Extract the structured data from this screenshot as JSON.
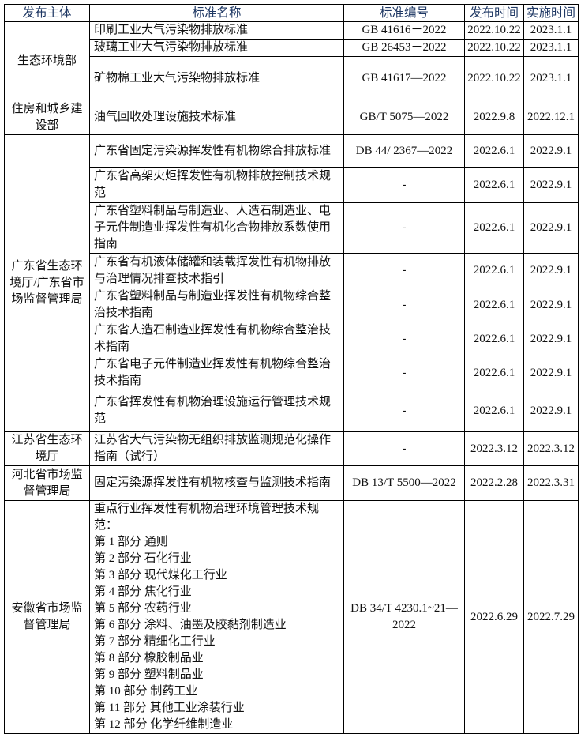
{
  "headers": [
    "发布主体",
    "标准名称",
    "标准编号",
    "发布时间",
    "实施时间"
  ],
  "groups": [
    {
      "agency": "生态环境部",
      "rows": [
        {
          "name": "印刷工业大气污染物排放标准",
          "code": "GB 41616－2022",
          "publish": "2022.10.22",
          "implement": "2023.1.1"
        },
        {
          "name": "玻璃工业大气污染物排放标准",
          "code": "GB 26453－2022",
          "publish": "2022.10.22",
          "implement": "2023.1.1"
        },
        {
          "name": "矿物棉工业大气污染物排放标准",
          "code": "GB 41617—2022",
          "publish": "2022.10.22",
          "implement": "2023.1.1"
        }
      ]
    },
    {
      "agency": "住房和城乡建设部",
      "rows": [
        {
          "name": "油气回收处理设施技术标准",
          "code": "GB/T 5075—2022",
          "publish": "2022.9.8",
          "implement": "2022.12.1"
        }
      ]
    },
    {
      "agency": "广东省生态环境厅/广东省市场监督管理局",
      "rows": [
        {
          "name": "广东省固定污染源挥发性有机物综合排放标准",
          "code": "DB 44/ 2367—2022",
          "publish": "2022.6.1",
          "implement": "2022.9.1"
        },
        {
          "name": "广东省高架火炬挥发性有机物排放控制技术规范",
          "code": "-",
          "publish": "2022.6.1",
          "implement": "2022.9.1"
        },
        {
          "name": "广东省塑料制品与制造业、人造石制造业、电子元件制造业挥发性有机化合物排放系数使用指南",
          "code": "-",
          "publish": "2022.6.1",
          "implement": "2022.9.1"
        },
        {
          "name": "广东省有机液体储罐和装载挥发性有机物排放与治理情况排查技术指引",
          "code": "-",
          "publish": "2022.6.1",
          "implement": "2022.9.1"
        },
        {
          "name": "广东省塑料制品与制造业挥发性有机物综合整治技术指南",
          "code": "-",
          "publish": "2022.6.1",
          "implement": "2022.9.1"
        },
        {
          "name": "广东省人造石制造业挥发性有机物综合整治技术指南",
          "code": "-",
          "publish": "2022.6.1",
          "implement": "2022.9.1"
        },
        {
          "name": "广东省电子元件制造业挥发性有机物综合整治技术指南",
          "code": "-",
          "publish": "2022.6.1",
          "implement": "2022.9.1"
        },
        {
          "name": "广东省挥发性有机物治理设施运行管理技术规范",
          "code": "-",
          "publish": "2022.6.1",
          "implement": "2022.9.1"
        }
      ]
    },
    {
      "agency": "江苏省生态环境厅",
      "rows": [
        {
          "name": "江苏省大气污染物无组织排放监测规范化操作指南（试行）",
          "code": "-",
          "publish": "2022.3.12",
          "implement": "2022.3.12"
        }
      ]
    },
    {
      "agency": "河北省市场监督管理局",
      "rows": [
        {
          "name": "固定污染源挥发性有机物核查与监测技术指南",
          "code": "DB 13/T 5500—2022",
          "publish": "2022.2.28",
          "implement": "2022.3.31"
        }
      ]
    },
    {
      "agency": "安徽省市场监督管理局",
      "rows": [
        {
          "name": "重点行业挥发性有机物治理环境管理技术规范：",
          "parts": [
            "第 1 部分  通则",
            "第 2 部分  石化行业",
            "第 3 部分  现代煤化工行业",
            "第 4 部分  焦化行业",
            "第 5 部分 农药行业",
            "第 6 部分  涂料、油墨及胶黏剂制造业",
            "第 7 部分  精细化工行业",
            "第 8 部分  橡胶制品业",
            "第 9 部分  塑料制品业",
            "第 10 部分  制药工业",
            "第 11 部分  其他工业涂装行业",
            "第 12 部分  化学纤维制造业"
          ],
          "code": "DB 34/T 4230.1~21—2022",
          "publish": "2022.6.29",
          "implement": "2022.7.29"
        }
      ]
    }
  ]
}
